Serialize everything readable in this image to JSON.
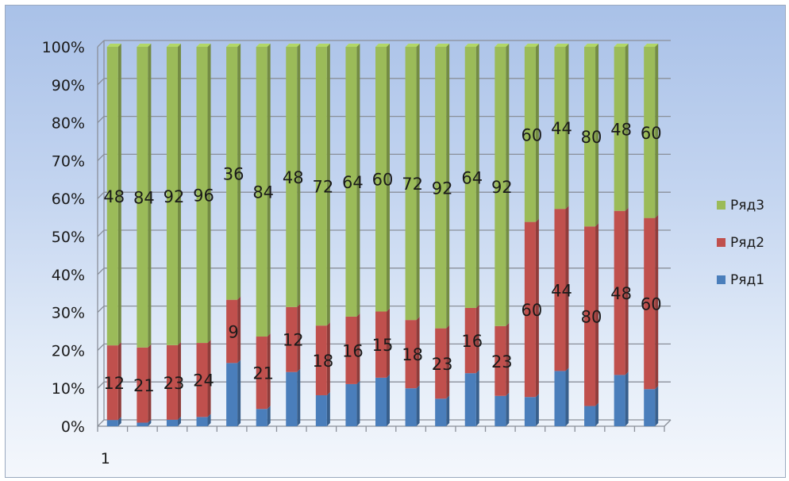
{
  "chart_data": {
    "type": "bar",
    "stacked": "percent",
    "categories": [
      "1",
      "",
      "",
      "",
      "",
      "",
      "",
      "",
      "",
      "",
      "",
      "",
      "",
      "",
      "",
      "",
      "",
      "",
      ""
    ],
    "series": [
      {
        "name": "Ряд1",
        "color": "#4a7ebb",
        "values": [
          1,
          1,
          2,
          3,
          9,
          5,
          10,
          8,
          10,
          11,
          10,
          9,
          13,
          10,
          10,
          15,
          9,
          15,
          13
        ]
      },
      {
        "name": "Ряд2",
        "color": "#c0504d",
        "values": [
          12,
          21,
          23,
          24,
          9,
          21,
          12,
          18,
          16,
          15,
          18,
          23,
          16,
          23,
          60,
          44,
          80,
          48,
          60
        ]
      },
      {
        "name": "Ряд3",
        "color": "#9bbb59",
        "values": [
          48,
          84,
          92,
          96,
          36,
          84,
          48,
          72,
          64,
          60,
          72,
          92,
          64,
          92,
          60,
          44,
          80,
          48,
          60
        ]
      }
    ],
    "data_labels_series": [
      "Ряд2",
      "Ряд3"
    ],
    "y_ticks": [
      "0%",
      "10%",
      "20%",
      "30%",
      "40%",
      "50%",
      "60%",
      "70%",
      "80%",
      "90%",
      "100%"
    ],
    "ylim": [
      0,
      100
    ],
    "grid": true,
    "legend": "right",
    "legend_order": [
      "Ряд3",
      "Ряд2",
      "Ряд1"
    ]
  }
}
